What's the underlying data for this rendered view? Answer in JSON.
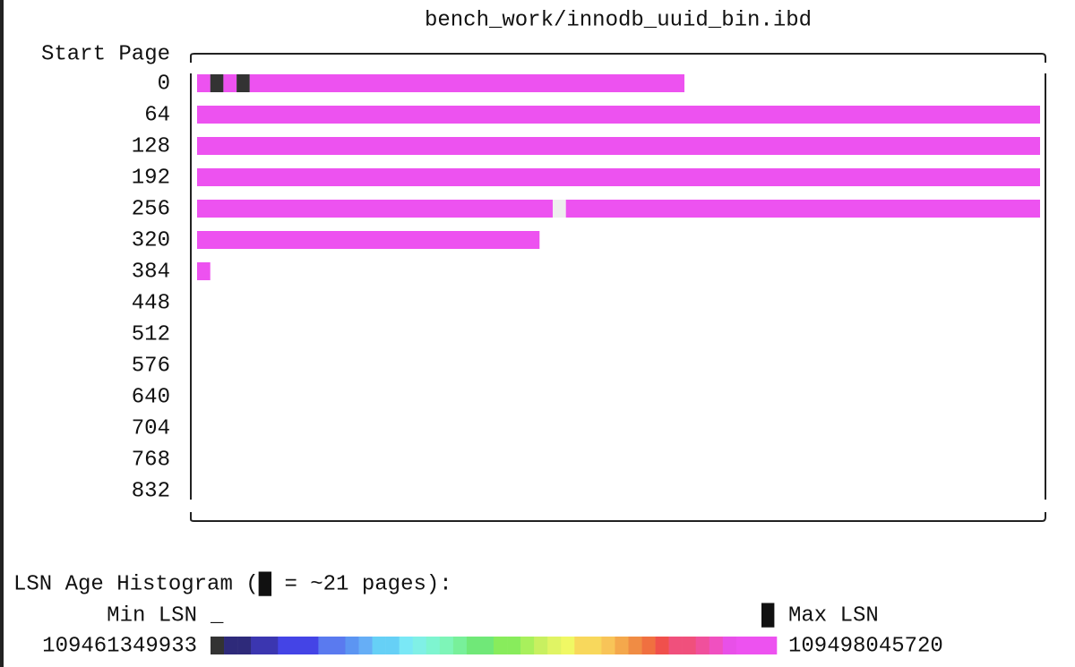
{
  "title": "bench_work/innodb_uuid_bin.ibd",
  "map": {
    "axis_label": "Start Page",
    "rows": [
      {
        "start": 0,
        "segments": [
          {
            "pages": 1,
            "color": "#ed52f0"
          },
          {
            "pages": 1,
            "color": "#333333"
          },
          {
            "pages": 1,
            "color": "#ed52f0"
          },
          {
            "pages": 1,
            "color": "#333333"
          },
          {
            "pages": 33,
            "color": "#ed52f0"
          }
        ]
      },
      {
        "start": 64,
        "segments": [
          {
            "pages": 64,
            "color": "#ed52f0"
          }
        ]
      },
      {
        "start": 128,
        "segments": [
          {
            "pages": 64,
            "color": "#ed52f0"
          }
        ]
      },
      {
        "start": 192,
        "segments": [
          {
            "pages": 64,
            "color": "#ed52f0"
          }
        ]
      },
      {
        "start": 256,
        "segments": [
          {
            "pages": 27,
            "color": "#ed52f0"
          },
          {
            "pages": 1,
            "color": "#eeeeee"
          },
          {
            "pages": 36,
            "color": "#ed52f0"
          }
        ]
      },
      {
        "start": 320,
        "segments": [
          {
            "pages": 26,
            "color": "#ed52f0"
          }
        ]
      },
      {
        "start": 384,
        "segments": [
          {
            "pages": 1,
            "color": "#ed52f0"
          }
        ]
      },
      {
        "start": 448,
        "segments": []
      },
      {
        "start": 512,
        "segments": []
      },
      {
        "start": 576,
        "segments": []
      },
      {
        "start": 640,
        "segments": []
      },
      {
        "start": 704,
        "segments": []
      },
      {
        "start": 768,
        "segments": []
      },
      {
        "start": 832,
        "segments": []
      }
    ]
  },
  "histogram": {
    "heading": "LSN Age Histogram (█ = ~21 pages):",
    "min_label": "Min LSN",
    "min_marker": "_",
    "max_marker": "█",
    "max_label": "Max LSN",
    "min_lsn": 109461349933,
    "max_lsn": 109498045720,
    "colors": [
      "#333333",
      "#2e2a7a",
      "#2e2a7a",
      "#3b36b0",
      "#3b36b0",
      "#4444e6",
      "#4444e6",
      "#4444e6",
      "#5a7aef",
      "#5a7aef",
      "#5c95f2",
      "#66aef6",
      "#66d0f6",
      "#66d0f6",
      "#7ae8f6",
      "#80f0e6",
      "#7ef5d0",
      "#7ef5b8",
      "#78f09a",
      "#70e878",
      "#70e878",
      "#88ec5c",
      "#88ec5c",
      "#a8f05c",
      "#c8f060",
      "#e0f464",
      "#f0f864",
      "#f8d85c",
      "#f8d85c",
      "#f8c458",
      "#f4a84c",
      "#f08c44",
      "#f07040",
      "#f0504c",
      "#f0507c",
      "#f0507c",
      "#f0509c",
      "#f050c0",
      "#e850e8",
      "#ed52f0",
      "#ed52f0",
      "#ed52f0"
    ]
  }
}
